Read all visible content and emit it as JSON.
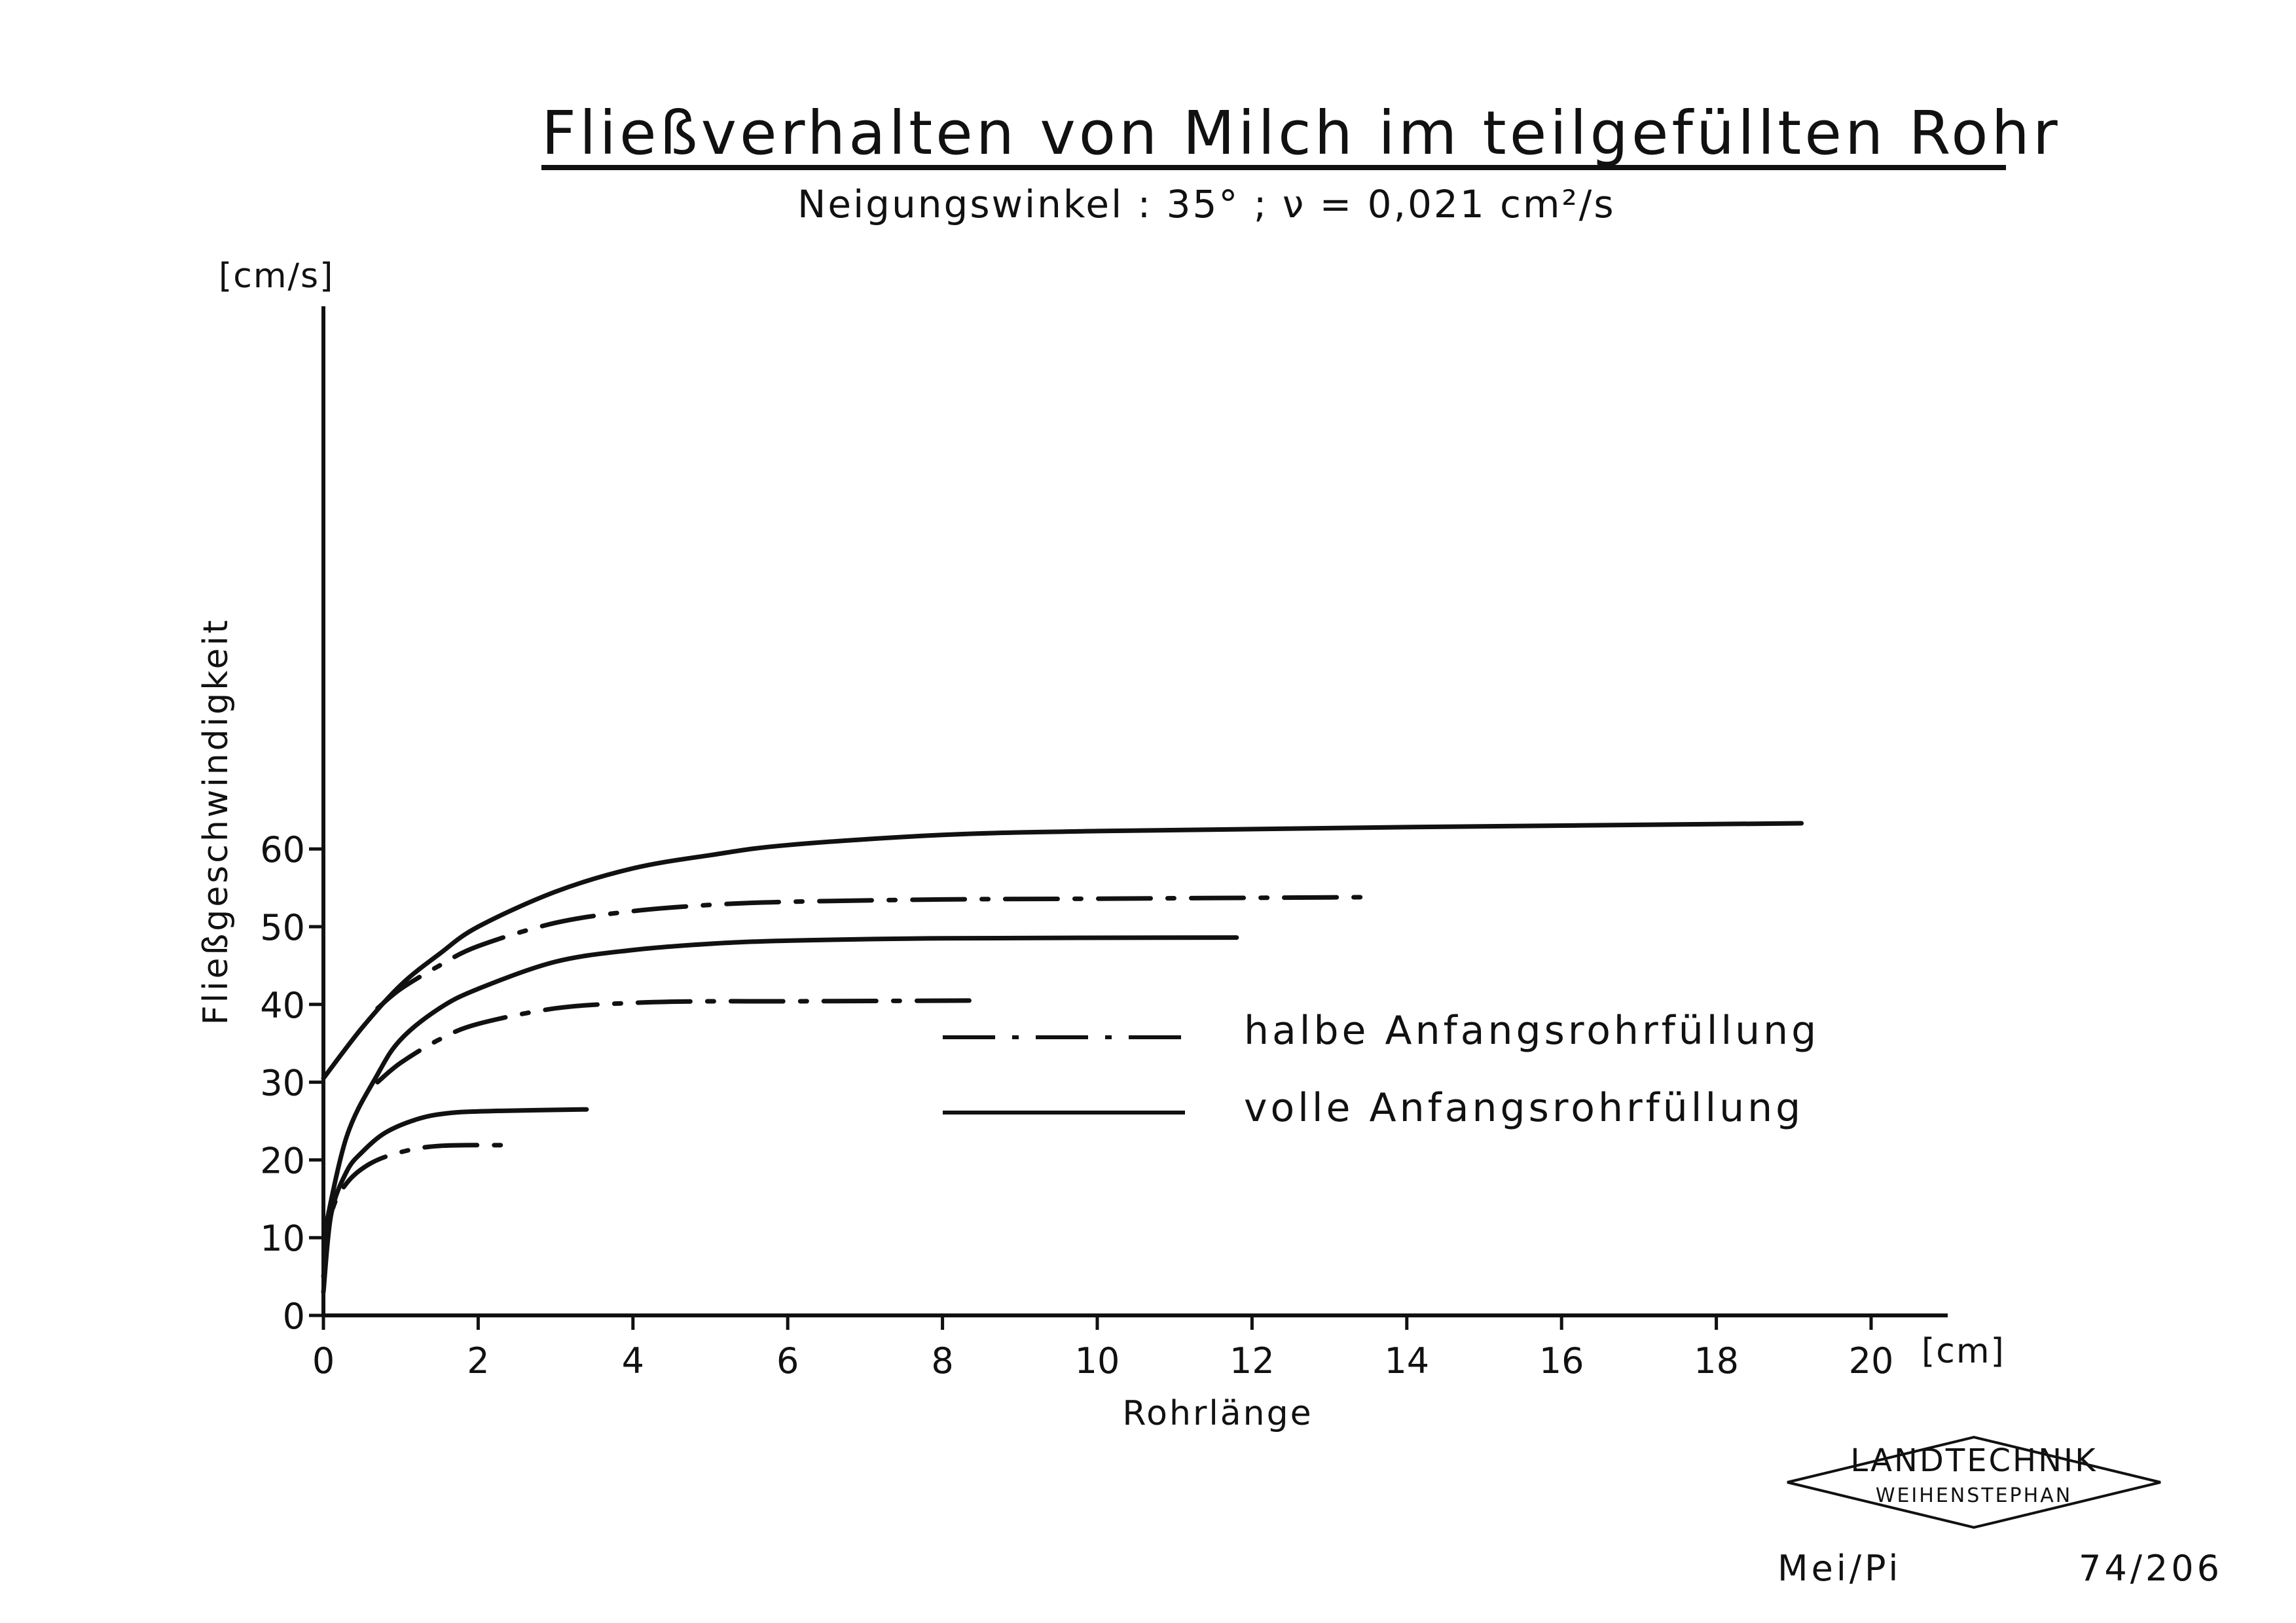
{
  "header": {
    "title": "Fließverhalten von Milch im teilgefüllten Rohr",
    "subtitle": "Neigungswinkel : 35° ;  ν = 0,021 cm²/s"
  },
  "chart_data": {
    "type": "line",
    "xlabel": "Rohrlänge",
    "x_unit": "[cm]",
    "ylabel": "Fließgeschwindigkeit",
    "y_unit": "[cm/s]",
    "xlim": [
      0,
      21
    ],
    "ylim": [
      0,
      65
    ],
    "xticks": [
      0,
      2,
      4,
      6,
      8,
      10,
      12,
      14,
      16,
      18,
      20
    ],
    "yticks": [
      0,
      10,
      20,
      30,
      40,
      50,
      60
    ],
    "legend": [
      {
        "label": "halbe  Anfangsrohrfüllung",
        "style": "dashdot"
      },
      {
        "label": "volle  Anfangsrohrfüllung",
        "style": "solid"
      }
    ],
    "series": [
      {
        "style": "solid",
        "x": [
          0,
          0.5,
          1,
          1.5,
          2,
          3,
          4,
          5,
          6,
          8,
          10,
          14,
          19.1
        ],
        "y": [
          30.5,
          37,
          42.5,
          46.5,
          50,
          54.5,
          57.5,
          59.2,
          60.5,
          61.8,
          62.3,
          62.8,
          63.3
        ]
      },
      {
        "style": "dashdot",
        "x": [
          0.7,
          1,
          1.5,
          2,
          3,
          4,
          5,
          6,
          8,
          10,
          13.5
        ],
        "y": [
          39.5,
          42,
          45,
          47.5,
          50.5,
          52,
          52.8,
          53.2,
          53.5,
          53.6,
          53.8
        ]
      },
      {
        "style": "solid",
        "x": [
          0,
          0.3,
          0.7,
          1,
          1.5,
          2,
          3,
          4,
          5,
          6,
          8,
          11.8
        ],
        "y": [
          10,
          23,
          31,
          35.5,
          39.5,
          42,
          45.5,
          47,
          47.8,
          48.2,
          48.5,
          48.6
        ]
      },
      {
        "style": "dashdot",
        "x": [
          0.7,
          1,
          1.5,
          2,
          3,
          4,
          5,
          6,
          8.4
        ],
        "y": [
          30,
          32.5,
          35.5,
          37.5,
          39.5,
          40.2,
          40.4,
          40.4,
          40.5
        ]
      },
      {
        "style": "solid",
        "x": [
          0,
          0.1,
          0.3,
          0.5,
          0.8,
          1.2,
          1.6,
          2.2,
          3.4
        ],
        "y": [
          3,
          13,
          18.5,
          21,
          23.5,
          25.2,
          26,
          26.3,
          26.5
        ]
      },
      {
        "style": "dashdot",
        "x": [
          0,
          0.1,
          0.3,
          0.6,
          1,
          1.5,
          2.4
        ],
        "y": [
          5,
          13,
          17,
          19.5,
          21,
          21.8,
          21.9
        ]
      }
    ]
  },
  "footer": {
    "logo_line1": "LANDTECHNIK",
    "logo_line2": "WEIHENSTEPHAN",
    "author": "Mei/Pi",
    "doc_number": "74/206"
  }
}
